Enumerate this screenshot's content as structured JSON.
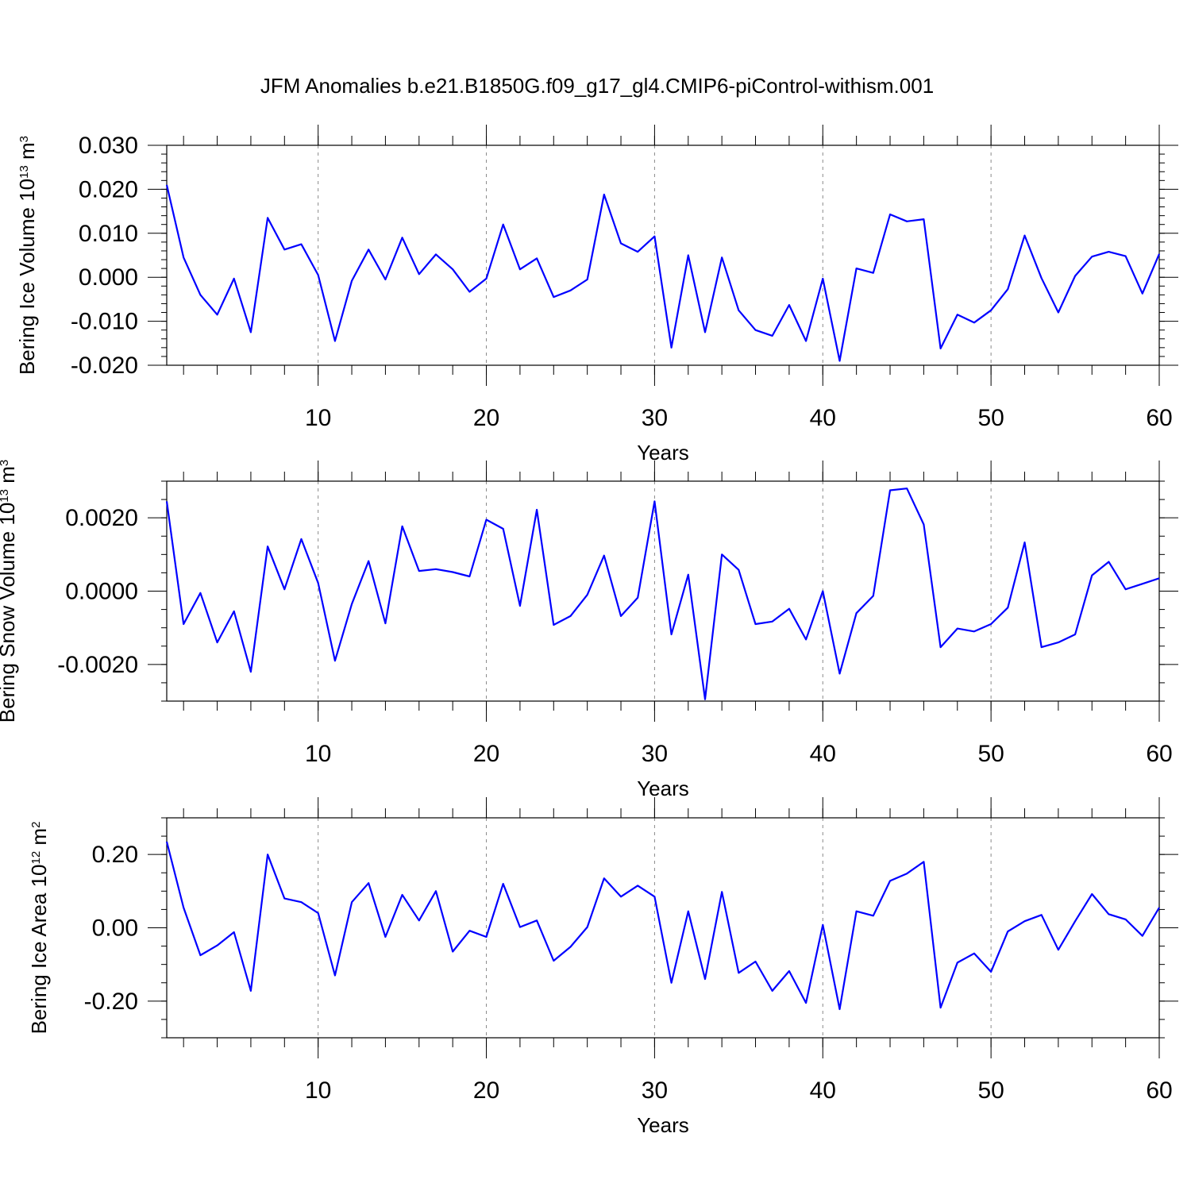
{
  "title": "JFM Anomalies b.e21.B1850G.f09_g17_gl4.CMIP6-piControl-withism.001",
  "chart_data": [
    {
      "type": "line",
      "xlabel": "Years",
      "ylabel_parts": {
        "text": "Bering Ice Volume 10",
        "exp": "13",
        "unit": " m",
        "unit_exp": "3"
      },
      "xlim": [
        1,
        60
      ],
      "ylim": [
        -0.02,
        0.03
      ],
      "xticks": [
        10,
        20,
        30,
        40,
        50,
        60
      ],
      "yticks": [
        -0.02,
        -0.01,
        0.0,
        0.01,
        0.02,
        0.03
      ],
      "ytick_labels": [
        "-0.020",
        "-0.010",
        "0.000",
        "0.010",
        "0.020",
        "0.030"
      ],
      "yminor_step": 0.002,
      "grid_x": [
        10,
        20,
        30,
        40,
        50
      ],
      "color": "#0000ff",
      "x": [
        1,
        2,
        3,
        4,
        5,
        6,
        7,
        8,
        9,
        10,
        11,
        12,
        13,
        14,
        15,
        16,
        17,
        18,
        19,
        20,
        21,
        22,
        23,
        24,
        25,
        26,
        27,
        28,
        29,
        30,
        31,
        32,
        33,
        34,
        35,
        36,
        37,
        38,
        39,
        40,
        41,
        42,
        43,
        44,
        45,
        46,
        47,
        48,
        49,
        50,
        51,
        52,
        53,
        54,
        55,
        56,
        57,
        58,
        59,
        60
      ],
      "values": [
        0.021,
        0.0045,
        -0.004,
        -0.0085,
        -0.0003,
        -0.0125,
        0.0135,
        0.0063,
        0.0075,
        0.0005,
        -0.0145,
        -0.0008,
        0.0063,
        -0.0005,
        0.009,
        0.0007,
        0.0052,
        0.0018,
        -0.0033,
        -0.0003,
        0.012,
        0.0018,
        0.0043,
        -0.0045,
        -0.003,
        -0.0005,
        0.0188,
        0.0077,
        0.0058,
        0.0093,
        -0.016,
        0.005,
        -0.0125,
        0.0045,
        -0.0075,
        -0.012,
        -0.0133,
        -0.0063,
        -0.0145,
        -0.0003,
        -0.019,
        0.002,
        0.001,
        0.0143,
        0.0127,
        0.0132,
        -0.0162,
        -0.0085,
        -0.0103,
        -0.0075,
        -0.0027,
        0.0095,
        -0.0002,
        -0.008,
        0.0003,
        0.0047,
        0.0058,
        0.0048,
        -0.0037,
        0.0053
      ]
    },
    {
      "type": "line",
      "xlabel": "Years",
      "ylabel_parts": {
        "text": "Bering Snow Volume 10",
        "exp": "13",
        "unit": " m",
        "unit_exp": "3"
      },
      "xlim": [
        1,
        60
      ],
      "ylim": [
        -0.003,
        0.003
      ],
      "xticks": [
        10,
        20,
        30,
        40,
        50,
        60
      ],
      "yticks": [
        -0.002,
        0.0,
        0.002
      ],
      "ytick_labels": [
        "-0.0020",
        "0.0000",
        "0.0020"
      ],
      "yminor_step": 0.0005,
      "grid_x": [
        10,
        20,
        30,
        40,
        50
      ],
      "color": "#0000ff",
      "x": [
        1,
        2,
        3,
        4,
        5,
        6,
        7,
        8,
        9,
        10,
        11,
        12,
        13,
        14,
        15,
        16,
        17,
        18,
        19,
        20,
        21,
        22,
        23,
        24,
        25,
        26,
        27,
        28,
        29,
        30,
        31,
        32,
        33,
        34,
        35,
        36,
        37,
        38,
        39,
        40,
        41,
        42,
        43,
        44,
        45,
        46,
        47,
        48,
        49,
        50,
        51,
        52,
        53,
        54,
        55,
        56,
        57,
        58,
        59,
        60
      ],
      "values": [
        0.00245,
        -0.0009,
        -5e-05,
        -0.0014,
        -0.00055,
        -0.0022,
        0.00122,
        5e-05,
        0.00142,
        0.00022,
        -0.0019,
        -0.00035,
        0.00082,
        -0.00088,
        0.00177,
        0.00055,
        0.0006,
        0.00052,
        0.0004,
        0.00195,
        0.0017,
        -0.0004,
        0.00222,
        -0.00092,
        -0.00068,
        -0.0001,
        0.00097,
        -0.00068,
        -0.00018,
        0.00245,
        -0.00118,
        0.00045,
        -0.00295,
        0.001,
        0.00058,
        -0.0009,
        -0.00083,
        -0.00048,
        -0.00132,
        0.0,
        -0.00225,
        -0.0006,
        -0.00013,
        0.00275,
        0.0028,
        0.00182,
        -0.00153,
        -0.00102,
        -0.0011,
        -0.0009,
        -0.00045,
        0.00133,
        -0.00153,
        -0.0014,
        -0.00118,
        0.00043,
        0.0008,
        5e-05,
        0.0002,
        0.00035
      ]
    },
    {
      "type": "line",
      "xlabel": "Years",
      "ylabel_parts": {
        "text": "Bering Ice Area 10",
        "exp": "12",
        "unit": " m",
        "unit_exp": "2"
      },
      "xlim": [
        1,
        60
      ],
      "ylim": [
        -0.3,
        0.3
      ],
      "xticks": [
        10,
        20,
        30,
        40,
        50,
        60
      ],
      "yticks": [
        -0.2,
        0.0,
        0.2
      ],
      "ytick_labels": [
        "-0.20",
        "0.00",
        "0.20"
      ],
      "yminor_step": 0.05,
      "grid_x": [
        10,
        20,
        30,
        40,
        50
      ],
      "color": "#0000ff",
      "x": [
        1,
        2,
        3,
        4,
        5,
        6,
        7,
        8,
        9,
        10,
        11,
        12,
        13,
        14,
        15,
        16,
        17,
        18,
        19,
        20,
        21,
        22,
        23,
        24,
        25,
        26,
        27,
        28,
        29,
        30,
        31,
        32,
        33,
        34,
        35,
        36,
        37,
        38,
        39,
        40,
        41,
        42,
        43,
        44,
        45,
        46,
        47,
        48,
        49,
        50,
        51,
        52,
        53,
        54,
        55,
        56,
        57,
        58,
        59,
        60
      ],
      "values": [
        0.235,
        0.055,
        -0.075,
        -0.048,
        -0.012,
        -0.172,
        0.2,
        0.08,
        0.07,
        0.04,
        -0.13,
        0.07,
        0.122,
        -0.025,
        0.09,
        0.02,
        0.1,
        -0.065,
        -0.008,
        -0.025,
        0.12,
        0.002,
        0.02,
        -0.09,
        -0.052,
        0.002,
        0.135,
        0.085,
        0.115,
        0.085,
        -0.15,
        0.045,
        -0.14,
        0.098,
        -0.123,
        -0.092,
        -0.172,
        -0.118,
        -0.205,
        0.008,
        -0.222,
        0.045,
        0.033,
        0.128,
        0.148,
        0.18,
        -0.218,
        -0.095,
        -0.07,
        -0.12,
        -0.01,
        0.018,
        0.035,
        -0.06,
        0.018,
        0.092,
        0.037,
        0.023,
        -0.022,
        0.055
      ]
    }
  ]
}
